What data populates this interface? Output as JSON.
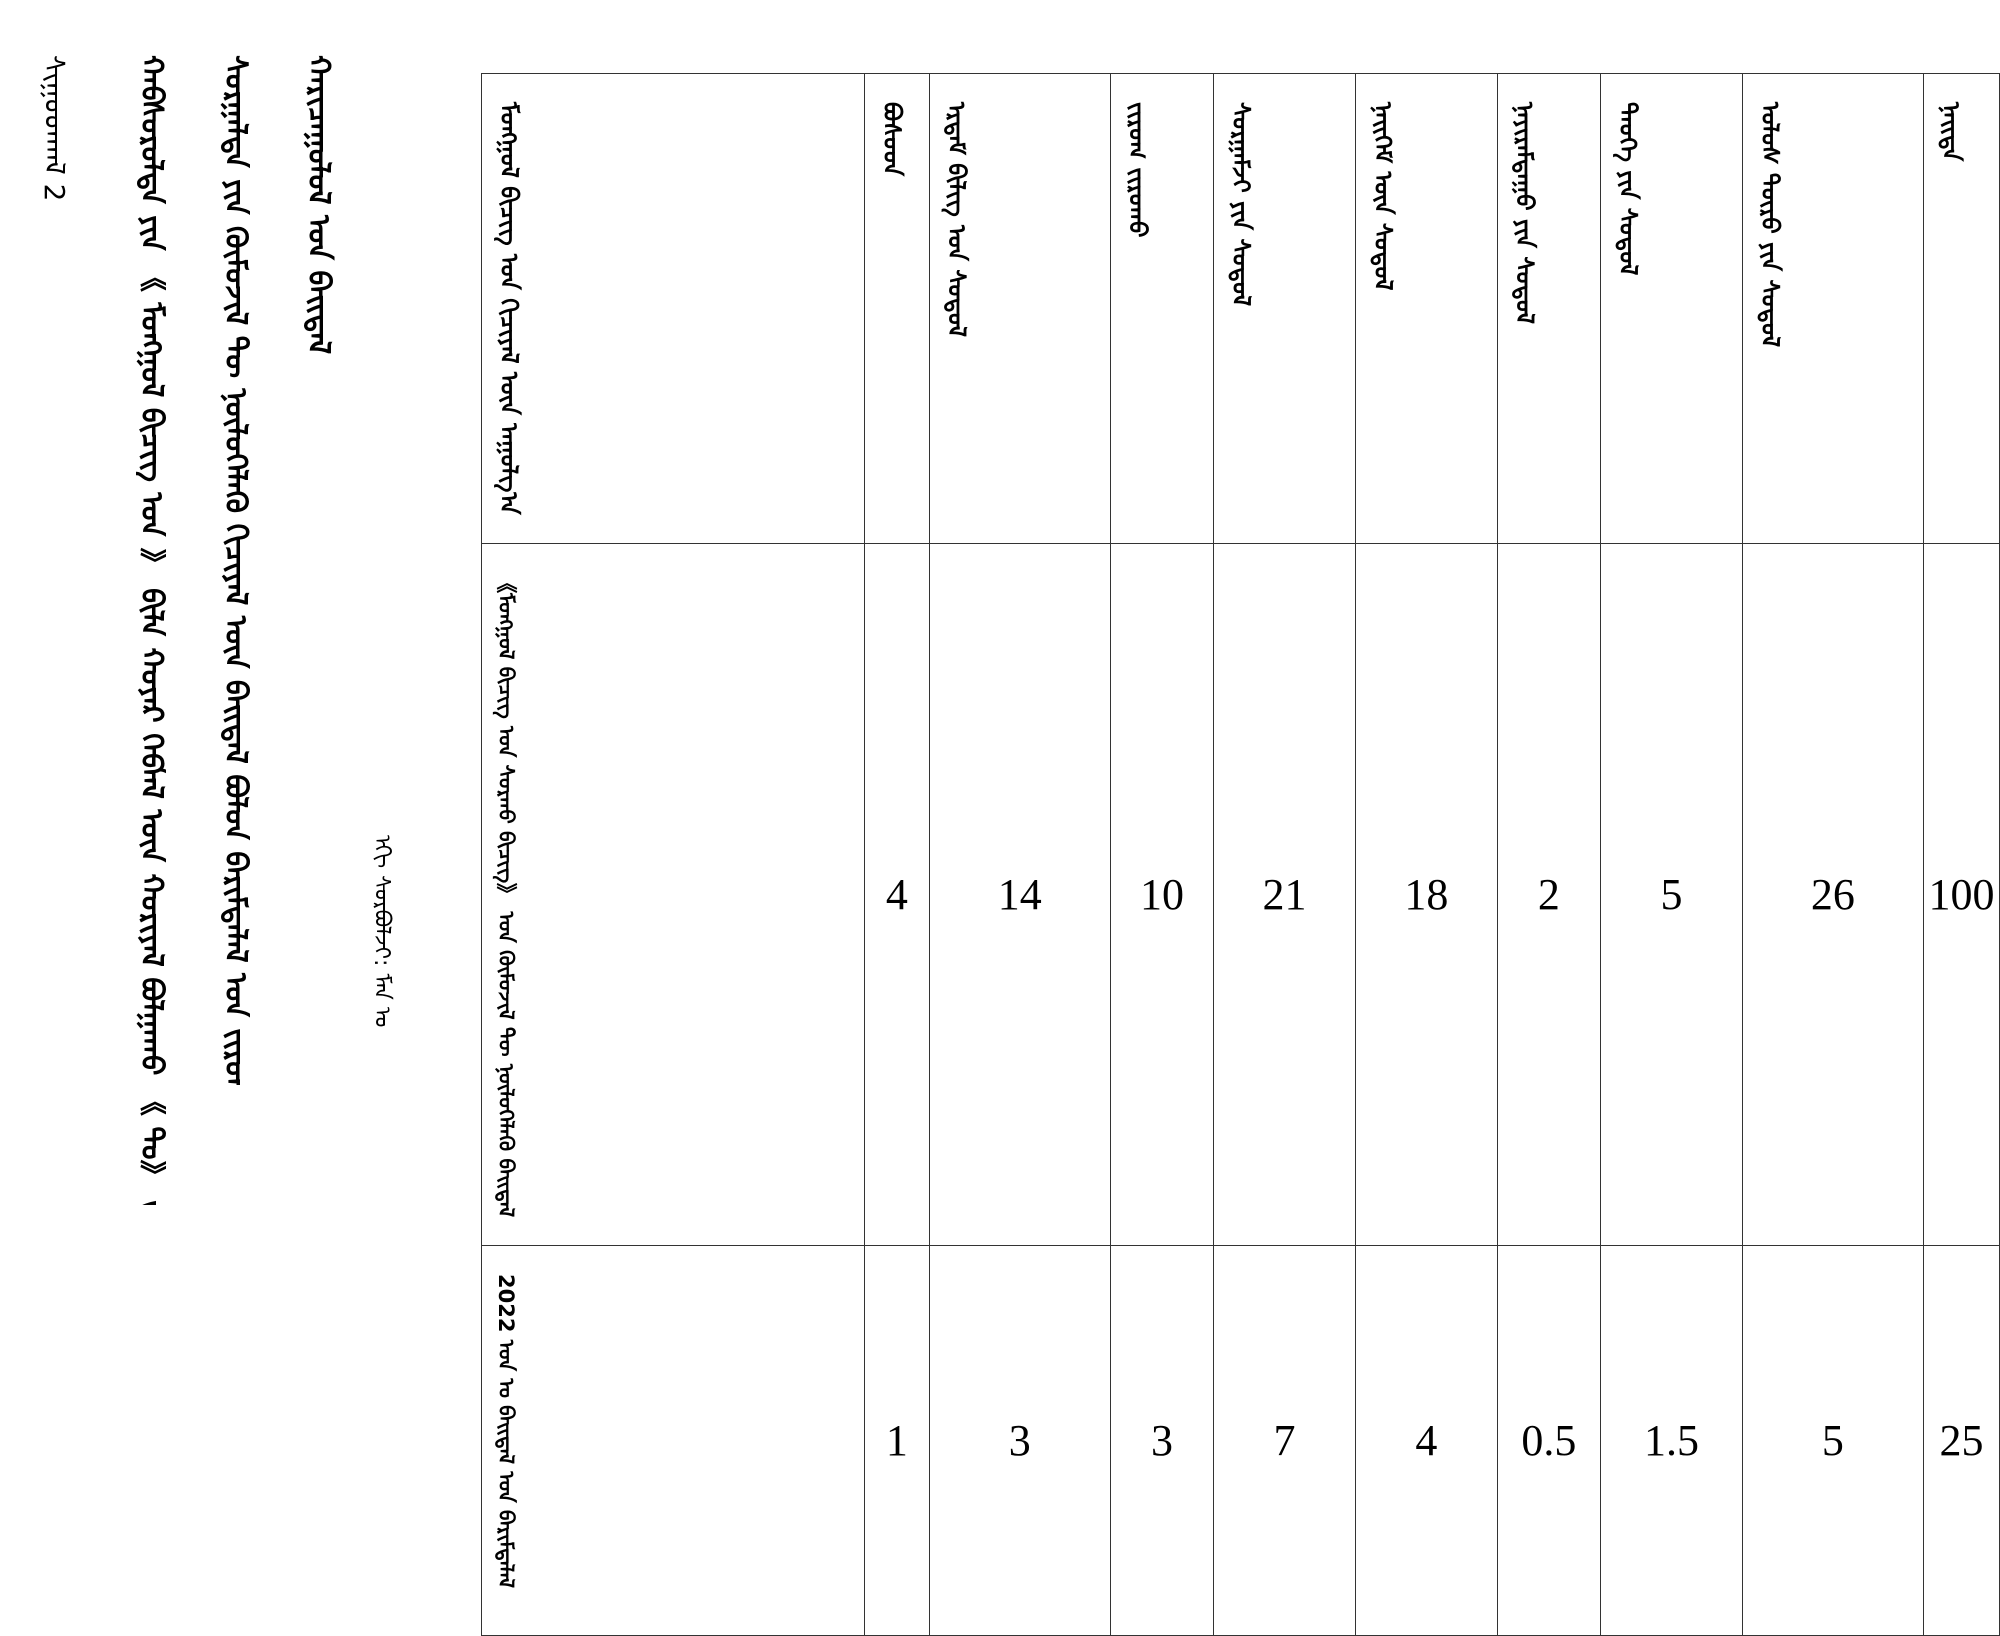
{
  "body_text": {
    "caption": "ᠰᠢᠭᠤᠳᠬᠠᠯ 2",
    "line1": "ᠬᠠᠪᠰᠤᠷᠤᠯᠲᠠ ᠶᠢᠨ 《 ᠮᠣᠩᠭᠣᠯ ᠪᠢᠴᠢᠭ᠌ ᠤᠨ 》 ᠪᠢᠯᠡ ᠬᠣᠶᠠᠷ ᠬᠡᠪᠯᠡᠯ ᠦᠨ ᠬᠣᠷᠢᠶᠠᠯ ᠪᠣᠯᠭᠠᠬᠤ 《 ᠲᠤ》 ᠳᠤ",
    "line2": "ᠰᠤᠷᠭᠠᠯᠲᠠ ᠶᠢᠨ ᠬᠦᠮᠦᠵᠢᠯ ᠲᠦ ᠨᠥᠯᠦᠭᠡᠯᠡᠬᠦ ᠬᠢᠴᠢᠶᠡᠯ ᠦᠨ ᠪᠠᠢᠳᠠᠯ ᠪᠣᠯᠤᠨ ᠪᠠᠷᠢᠮᠲᠠᠯᠠᠯ ᠤᠨ ᠵᠢᠷᠤᠭ",
    "line3": "ᠬᠠᠷᠢᠴᠠᠭᠤᠯᠤᠯ ᠤᠨ ᠪᠠᠢᠳᠠᠯ",
    "source_note": "ᠡᠬᠢ ᠰᠤᠷᠪᠤᠯᠵᠢ: ᠮᠠᠨ ᠤ"
  },
  "table": {
    "header_cells": {
      "corner": "ᠮᠣᠩᠭᠣᠯ ᠪᠢᠴᠢᠭ᠌ ᠤᠨ ᠬᠢᠴᠢᠶᠡᠯ ᠦᠨ ᠠᠭᠤᠯᠭ᠎ᠠ",
      "row1": "《ᠮᠣᠩᠭᠣᠯ ᠪᠢᠴᠢᠭ᠌ ᠤᠨ ᠰᠤᠷᠬᠤ ᠪᠢᠴᠢᠭ᠌》 ᠤᠨ ᠬᠦᠮᠦᠵᠢᠯ ᠲᠦ ᠨᠥᠯᠦᠭᠡᠯᠡᠬᠦ ᠪᠠᠢᠳᠠᠯ",
      "row2": "2022 ᠣᠨ ᠤ ᠪᠠᠢᠳᠠᠯ ᠤᠨ ᠪᠠᠷᠢᠮᠲᠠᠯᠠᠯ"
    },
    "columns": [
      {
        "label": "ᠪᠤᠰᠤᠳ",
        "row1": "4",
        "row2": "1"
      },
      {
        "label": "ᠡᠷᠳᠡᠮ ᠪᠢᠯᠢᠭ ᠤᠨ ᠰᠤᠳᠤᠯ",
        "row1": "14",
        "row2": "3"
      },
      {
        "label": "ᠵᠢᠷᠤᠭ ᠵᠢᠷᠤᠬᠤ",
        "row1": "10",
        "row2": "3"
      },
      {
        "label": "ᠰᠤᠷᠭᠠᠮᠵᠢ ᠶᠢᠨ ᠰᠤᠳᠤᠯ",
        "row1": "21",
        "row2": "7"
      },
      {
        "label": "ᠨᠡᠢᠭᠡᠮ ᠦᠨ ᠰᠤᠳᠤᠯ",
        "row1": "18",
        "row2": "4"
      },
      {
        "label": "ᠨᠠᠶᠢᠷᠠᠮᠳᠠᠭᠤ ᠶᠢᠨ ᠰᠤᠳᠤᠯ",
        "row1": "2",
        "row2": "0.5"
      },
      {
        "label": "ᠲᠡᠦᠬᠡ ᠶᠢᠨ ᠰᠤᠳᠤᠯ",
        "row1": "5",
        "row2": "1.5"
      },
      {
        "label": "ᠤᠯᠤᠰ ᠲᠥᠷᠦ ᠶᠢᠨ ᠰᠤᠳᠤᠯ",
        "row1": "26",
        "row2": "5"
      },
      {
        "label": "ᠨᠡᠢᠳᠡ",
        "row1": "100",
        "row2": "25"
      }
    ]
  }
}
